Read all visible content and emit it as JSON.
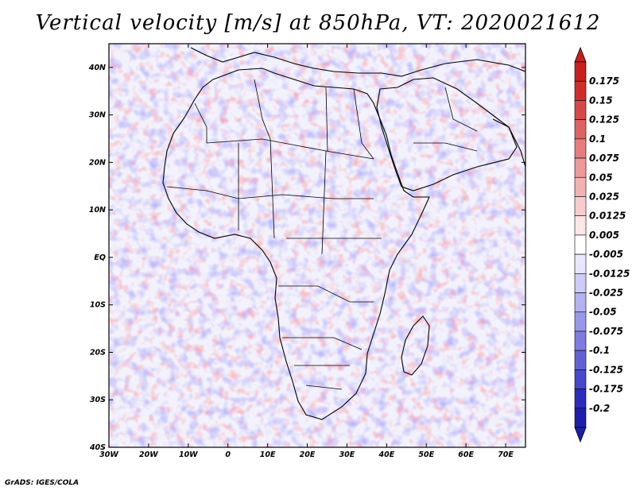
{
  "title": "Vertical velocity [m/s] at 850hPa, VT: 2020021612",
  "footer": "GrADS: IGES/COLA",
  "chart_data": {
    "type": "heatmap",
    "title": "Vertical velocity [m/s] at 850hPa, VT: 2020021612",
    "variable": "Vertical velocity",
    "units": "m/s",
    "level": "850hPa",
    "valid_time": "2020021612",
    "xlim": [
      -30,
      75
    ],
    "ylim": [
      -40,
      45
    ],
    "x_ticks": [
      "30W",
      "20W",
      "10W",
      "0",
      "10E",
      "20E",
      "30E",
      "40E",
      "50E",
      "60E",
      "70E"
    ],
    "y_ticks": [
      "40N",
      "30N",
      "20N",
      "10N",
      "EQ",
      "10S",
      "20S",
      "30S",
      "40S"
    ],
    "colorbar": {
      "levels": [
        "0.175",
        "0.15",
        "0.125",
        "0.1",
        "0.075",
        "0.05",
        "0.025",
        "0.0125",
        "0.005",
        "-0.005",
        "-0.0125",
        "-0.025",
        "-0.05",
        "-0.075",
        "-0.1",
        "-0.125",
        "-0.175",
        "-0.2"
      ],
      "colors": [
        "#c81e1e",
        "#d02c2c",
        "#d84848",
        "#e06262",
        "#e87c7c",
        "#ee9898",
        "#f3b2b2",
        "#f8cccc",
        "#fce6e6",
        "#ffffff",
        "#e6e6fc",
        "#ccccf6",
        "#b2b2f0",
        "#9898ea",
        "#7c7ce2",
        "#6262d8",
        "#4848cc",
        "#2c2cbc",
        "#1e1eac"
      ]
    }
  }
}
